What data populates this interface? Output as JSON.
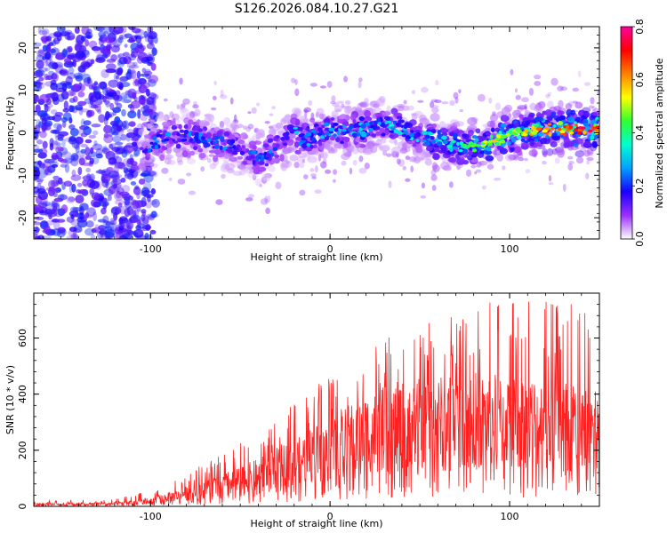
{
  "title": "S126.2026.084.10.27.G21",
  "colors": {
    "snr_line": "#ff2020",
    "frame": "#000000"
  },
  "chart_data": [
    {
      "type": "heatmap",
      "name": "spectrogram",
      "xlabel": "Height of straight line (km)",
      "ylabel": "Frequency (Hz)",
      "xlim": [
        -165,
        150
      ],
      "ylim": [
        -25,
        25
      ],
      "xticks": [
        -100,
        0,
        100
      ],
      "yticks": [
        -20,
        -10,
        0,
        10,
        20
      ],
      "xtick_labels": [
        "-100",
        "0",
        "100"
      ],
      "ytick_labels": [
        "-20",
        "-10",
        "0",
        "10",
        "20"
      ],
      "colorbar": {
        "label": "Normalized spectral amplitude",
        "range": [
          0.0,
          0.8
        ],
        "ticks": [
          "0.0",
          "0.2",
          "0.4",
          "0.6",
          "0.8"
        ],
        "colormap": [
          "#ffffff",
          "#9b30ff",
          "#1a00ff",
          "#00a0ff",
          "#00ffd0",
          "#30ff30",
          "#ffff00",
          "#ff8000",
          "#ff0000",
          "#ff00a0"
        ]
      },
      "ridge": {
        "x": [
          -105,
          -95,
          -85,
          -75,
          -65,
          -55,
          -45,
          -40,
          -35,
          -30,
          -25,
          -20,
          -15,
          -10,
          -5,
          0,
          10,
          20,
          30,
          40,
          50,
          60,
          70,
          80,
          90,
          100,
          110,
          120,
          130,
          140,
          150
        ],
        "freq": [
          -4,
          -2,
          -1,
          -1,
          -2,
          -3,
          -5,
          -6,
          -5,
          -3,
          -2,
          0,
          -2,
          -1,
          0,
          1,
          0,
          1,
          2,
          1,
          -1,
          -2,
          -3,
          -3,
          -2,
          0,
          0,
          1,
          1,
          1,
          1
        ],
        "peak_amplitude": [
          0.25,
          0.3,
          0.3,
          0.3,
          0.3,
          0.3,
          0.25,
          0.3,
          0.3,
          0.3,
          0.35,
          0.35,
          0.35,
          0.35,
          0.35,
          0.35,
          0.4,
          0.4,
          0.4,
          0.4,
          0.4,
          0.45,
          0.45,
          0.5,
          0.6,
          0.55,
          0.6,
          0.75,
          0.75,
          0.8,
          0.75
        ]
      }
    },
    {
      "type": "line",
      "name": "snr",
      "xlabel": "Height of straight line (km)",
      "ylabel": "SNR (10 * v/v)",
      "xlim": [
        -165,
        150
      ],
      "ylim": [
        0,
        760
      ],
      "xticks": [
        -100,
        0,
        100
      ],
      "yticks": [
        0,
        200,
        400,
        600
      ],
      "xtick_labels": [
        "-100",
        "0",
        "100"
      ],
      "ytick_labels": [
        "0",
        "200",
        "400",
        "600"
      ],
      "envelope": {
        "x": [
          -165,
          -120,
          -100,
          -80,
          -60,
          -40,
          -20,
          0,
          20,
          40,
          60,
          80,
          100,
          120,
          150
        ],
        "median": [
          8,
          10,
          20,
          45,
          75,
          110,
          160,
          210,
          260,
          290,
          300,
          310,
          305,
          300,
          290
        ],
        "max": [
          20,
          25,
          60,
          120,
          190,
          260,
          370,
          470,
          560,
          630,
          690,
          720,
          740,
          760,
          700
        ]
      }
    }
  ]
}
